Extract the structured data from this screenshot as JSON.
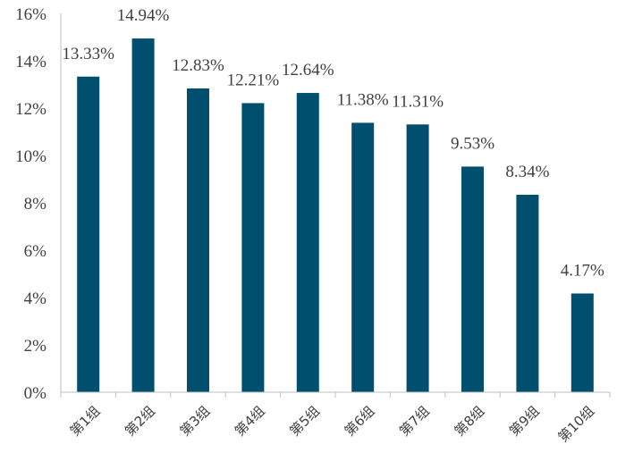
{
  "chart_data": {
    "type": "bar",
    "categories": [
      "第1组",
      "第2组",
      "第3组",
      "第4组",
      "第5组",
      "第6组",
      "第7组",
      "第8组",
      "第9组",
      "第10组"
    ],
    "values": [
      13.33,
      14.94,
      12.83,
      12.21,
      12.64,
      11.38,
      11.31,
      9.53,
      8.34,
      4.17
    ],
    "data_labels": [
      "13.33%",
      "14.94%",
      "12.83%",
      "12.21%",
      "12.64%",
      "11.38%",
      "11.31%",
      "9.53%",
      "8.34%",
      "4.17%"
    ],
    "y_ticks": [
      0,
      2,
      4,
      6,
      8,
      10,
      12,
      14,
      16
    ],
    "y_tick_labels": [
      "0%",
      "2%",
      "4%",
      "6%",
      "8%",
      "10%",
      "12%",
      "14%",
      "16%"
    ],
    "ylim": [
      0,
      16
    ],
    "grid": false,
    "colors": {
      "bar": "#004f6e",
      "axis": "#bfbfbf",
      "text": "#404040"
    }
  }
}
